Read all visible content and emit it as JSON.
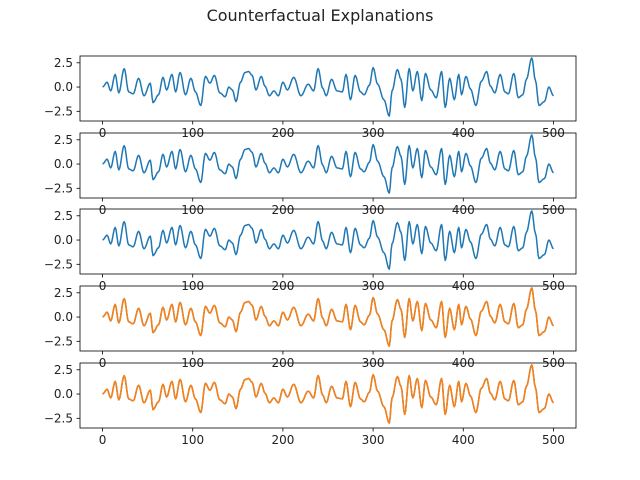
{
  "figure": {
    "title": "Counterfactual Explanations"
  },
  "colors": {
    "original": "#1f77b4",
    "counterfactual": "#ff7f0e",
    "axis": "#000000",
    "background": "#ffffff"
  },
  "chart_data": [
    {
      "type": "line",
      "panel": 1,
      "xlim": [
        -25,
        525
      ],
      "ylim": [
        -3.5,
        3.2
      ],
      "xticks": [
        0,
        100,
        200,
        300,
        400,
        500
      ],
      "xtick_labels": [
        "0",
        "100",
        "200",
        "300",
        "400",
        "500"
      ],
      "yticks": [
        -2.5,
        0.0,
        2.5
      ],
      "ytick_labels": [
        "−2.5",
        "0.0",
        "2.5"
      ],
      "series": [
        {
          "color": "#1f77b4",
          "signal": "base"
        }
      ]
    },
    {
      "type": "line",
      "panel": 2,
      "xlim": [
        -25,
        525
      ],
      "ylim": [
        -3.5,
        3.2
      ],
      "xticks": [
        0,
        100,
        200,
        300,
        400,
        500
      ],
      "xtick_labels": [
        "0",
        "100",
        "200",
        "300",
        "400",
        "500"
      ],
      "yticks": [
        -2.5,
        0.0,
        2.5
      ],
      "ytick_labels": [
        "−2.5",
        "0.0",
        "2.5"
      ],
      "series": [
        {
          "color": "#1f77b4",
          "signal": "base"
        }
      ]
    },
    {
      "type": "line",
      "panel": 3,
      "xlim": [
        -25,
        525
      ],
      "ylim": [
        -3.5,
        3.2
      ],
      "xticks": [
        0,
        100,
        200,
        300,
        400,
        500
      ],
      "xtick_labels": [
        "0",
        "100",
        "200",
        "300",
        "400",
        "500"
      ],
      "yticks": [
        -2.5,
        0.0,
        2.5
      ],
      "ytick_labels": [
        "−2.5",
        "0.0",
        "2.5"
      ],
      "series": [
        {
          "color": "#1f77b4",
          "signal": "base"
        }
      ]
    },
    {
      "type": "line",
      "panel": 4,
      "xlim": [
        -25,
        525
      ],
      "ylim": [
        -3.5,
        3.2
      ],
      "xticks": [
        0,
        100,
        200,
        300,
        400,
        500
      ],
      "xtick_labels": [
        "0",
        "100",
        "200",
        "300",
        "400",
        "500"
      ],
      "yticks": [
        -2.5,
        0.0,
        2.5
      ],
      "ytick_labels": [
        "−2.5",
        "0.0",
        "2.5"
      ],
      "series": [
        {
          "color": "#1f77b4",
          "signal": "base"
        },
        {
          "color": "#ff7f0e",
          "signal": "base"
        }
      ]
    },
    {
      "type": "line",
      "panel": 5,
      "xlim": [
        -25,
        525
      ],
      "ylim": [
        -3.5,
        3.2
      ],
      "xticks": [
        0,
        100,
        200,
        300,
        400,
        500
      ],
      "xtick_labels": [
        "0",
        "100",
        "200",
        "300",
        "400",
        "500"
      ],
      "yticks": [
        -2.5,
        0.0,
        2.5
      ],
      "ytick_labels": [
        "−2.5",
        "0.0",
        "2.5"
      ],
      "series": [
        {
          "color": "#1f77b4",
          "signal": "base"
        },
        {
          "color": "#ff7f0e",
          "signal": "base"
        }
      ]
    }
  ],
  "signal_keypoints": {
    "base": [
      [
        0,
        0.0
      ],
      [
        5,
        0.5
      ],
      [
        9,
        -0.4
      ],
      [
        14,
        1.3
      ],
      [
        18,
        -0.6
      ],
      [
        24,
        1.9
      ],
      [
        29,
        -0.5
      ],
      [
        34,
        -0.7
      ],
      [
        40,
        0.9
      ],
      [
        46,
        -0.9
      ],
      [
        53,
        0.4
      ],
      [
        56,
        -1.6
      ],
      [
        62,
        -0.8
      ],
      [
        67,
        1.0
      ],
      [
        71,
        -0.3
      ],
      [
        77,
        1.3
      ],
      [
        81,
        -0.5
      ],
      [
        86,
        1.5
      ],
      [
        92,
        -0.8
      ],
      [
        98,
        0.9
      ],
      [
        103,
        -0.5
      ],
      [
        109,
        -1.9
      ],
      [
        114,
        1.1
      ],
      [
        119,
        0.4
      ],
      [
        124,
        1.2
      ],
      [
        130,
        -0.6
      ],
      [
        136,
        -1.0
      ],
      [
        140,
        0.0
      ],
      [
        144,
        -0.3
      ],
      [
        148,
        -1.5
      ],
      [
        153,
        0.5
      ],
      [
        158,
        1.5
      ],
      [
        162,
        1.6
      ],
      [
        166,
        1.2
      ],
      [
        170,
        -0.3
      ],
      [
        176,
        1.1
      ],
      [
        180,
        0.1
      ],
      [
        185,
        -0.9
      ],
      [
        190,
        -0.4
      ],
      [
        195,
        -0.9
      ],
      [
        200,
        0.5
      ],
      [
        205,
        -0.3
      ],
      [
        212,
        1.0
      ],
      [
        220,
        -0.9
      ],
      [
        228,
        0.3
      ],
      [
        234,
        -0.4
      ],
      [
        239,
        1.9
      ],
      [
        244,
        -0.1
      ],
      [
        248,
        -0.9
      ],
      [
        254,
        0.8
      ],
      [
        260,
        -0.4
      ],
      [
        266,
        -0.5
      ],
      [
        270,
        1.3
      ],
      [
        275,
        -1.3
      ],
      [
        280,
        1.2
      ],
      [
        286,
        -0.5
      ],
      [
        290,
        -0.8
      ],
      [
        296,
        0.2
      ],
      [
        300,
        2.0
      ],
      [
        305,
        0.3
      ],
      [
        312,
        -1.3
      ],
      [
        318,
        -3.0
      ],
      [
        321,
        -0.4
      ],
      [
        327,
        1.8
      ],
      [
        331,
        0.8
      ],
      [
        335,
        -2.1
      ],
      [
        340,
        1.9
      ],
      [
        344,
        -0.4
      ],
      [
        349,
        1.6
      ],
      [
        354,
        -1.4
      ],
      [
        358,
        1.4
      ],
      [
        364,
        -0.3
      ],
      [
        370,
        -1.1
      ],
      [
        376,
        1.6
      ],
      [
        380,
        -2.1
      ],
      [
        385,
        0.9
      ],
      [
        390,
        -1.3
      ],
      [
        395,
        1.3
      ],
      [
        398,
        -0.8
      ],
      [
        403,
        1.1
      ],
      [
        408,
        -0.2
      ],
      [
        414,
        -1.9
      ],
      [
        420,
        0.6
      ],
      [
        426,
        1.6
      ],
      [
        430,
        0.1
      ],
      [
        435,
        -0.6
      ],
      [
        441,
        1.3
      ],
      [
        446,
        -0.5
      ],
      [
        450,
        -0.7
      ],
      [
        456,
        1.4
      ],
      [
        461,
        -1.1
      ],
      [
        466,
        -0.8
      ],
      [
        470,
        0.8
      ],
      [
        476,
        3.0
      ],
      [
        480,
        0.7
      ],
      [
        484,
        -1.9
      ],
      [
        490,
        -1.5
      ],
      [
        495,
        0.0
      ],
      [
        500,
        -0.9
      ]
    ]
  }
}
